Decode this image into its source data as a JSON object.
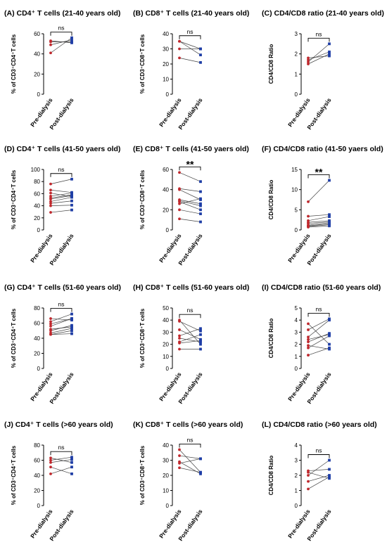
{
  "figure": {
    "categories": [
      "Pre-dialysis",
      "Post-dialysis"
    ],
    "pre_color": "#c0282d",
    "post_color": "#1f3ea6"
  },
  "chart_data": [
    {
      "id": "A",
      "type": "scatter",
      "panel": "(A)",
      "title": "CD4⁺ T cells (21-40 years old)",
      "ylabel": "% of CD3⁺CD4⁺T cells",
      "ylim": [
        0,
        60
      ],
      "yticks": [
        0,
        20,
        40,
        60
      ],
      "sig": "ns",
      "pairs": [
        [
          41,
          56
        ],
        [
          49,
          54
        ],
        [
          52,
          52
        ],
        [
          53,
          51
        ]
      ]
    },
    {
      "id": "B",
      "type": "scatter",
      "panel": "(B)",
      "title": "CD8⁺ T cells (21-40 years old)",
      "ylabel": "% of CD3⁺CD8⁺T cells",
      "ylim": [
        0,
        40
      ],
      "yticks": [
        0,
        10,
        20,
        30,
        40
      ],
      "sig": "ns",
      "pairs": [
        [
          35,
          26
        ],
        [
          35,
          30
        ],
        [
          30,
          30
        ],
        [
          24,
          21
        ]
      ]
    },
    {
      "id": "C",
      "type": "scatter",
      "panel": "(C)",
      "title": "CD4/CD8 ratio (21-40 years old)",
      "ylabel": "CD4/CD8 Ratio",
      "ylim": [
        0,
        3
      ],
      "yticks": [
        0,
        1,
        2,
        3
      ],
      "sig": "ns",
      "pairs": [
        [
          1.5,
          2.0
        ],
        [
          1.6,
          2.5
        ],
        [
          1.7,
          2.1
        ],
        [
          1.8,
          1.9
        ]
      ]
    },
    {
      "id": "D",
      "type": "scatter",
      "panel": "(D)",
      "title": "CD4⁺ T cells (41-50 yaers old)",
      "ylabel": "% of CD3⁺CD4⁺T cells",
      "ylim": [
        0,
        100
      ],
      "yticks": [
        0,
        20,
        40,
        60,
        80,
        100
      ],
      "sig": "ns",
      "pairs": [
        [
          76,
          84
        ],
        [
          66,
          62
        ],
        [
          61,
          55
        ],
        [
          56,
          61
        ],
        [
          53,
          58
        ],
        [
          51,
          57
        ],
        [
          47,
          54
        ],
        [
          44,
          48
        ],
        [
          40,
          41
        ],
        [
          29,
          33
        ]
      ]
    },
    {
      "id": "E",
      "type": "scatter",
      "panel": "(E)",
      "title": "CD8⁺ T cells (41-50 yaers old)",
      "ylabel": "% of CD3⁺CD8⁺T cells",
      "ylim": [
        0,
        60
      ],
      "yticks": [
        0,
        20,
        40,
        60
      ],
      "sig": "**",
      "pairs": [
        [
          57,
          48
        ],
        [
          41,
          38
        ],
        [
          40,
          30
        ],
        [
          30,
          26
        ],
        [
          29,
          24
        ],
        [
          28,
          20
        ],
        [
          26,
          31
        ],
        [
          20,
          16
        ],
        [
          11,
          8
        ]
      ]
    },
    {
      "id": "F",
      "type": "scatter",
      "panel": "(F)",
      "title": "CD4/CD8 ratio (41-50 yaers old)",
      "ylabel": "CD4/CD8 Ratio",
      "ylim": [
        0,
        15
      ],
      "yticks": [
        0,
        5,
        10,
        15
      ],
      "sig": "**",
      "pairs": [
        [
          7.0,
          12.3
        ],
        [
          3.4,
          3.8
        ],
        [
          2.3,
          3.3
        ],
        [
          1.9,
          2.3
        ],
        [
          1.6,
          2.0
        ],
        [
          1.2,
          1.8
        ],
        [
          1.0,
          1.5
        ],
        [
          0.9,
          1.3
        ],
        [
          0.7,
          1.0
        ]
      ]
    },
    {
      "id": "G",
      "type": "scatter",
      "panel": "(G)",
      "title": "CD4⁺ T cells (51-60 years old)",
      "ylabel": "% of CD3⁺CD4⁺T cells",
      "ylim": [
        0,
        80
      ],
      "yticks": [
        0,
        20,
        40,
        60,
        80
      ],
      "sig": "ns",
      "pairs": [
        [
          66,
          64
        ],
        [
          62,
          72
        ],
        [
          59,
          66
        ],
        [
          56,
          66
        ],
        [
          52,
          55
        ],
        [
          50,
          57
        ],
        [
          47,
          53
        ],
        [
          45,
          50
        ],
        [
          45,
          46
        ]
      ]
    },
    {
      "id": "H",
      "type": "scatter",
      "panel": "(H)",
      "title": "CD8⁺ T cells (51-60 years old)",
      "ylabel": "% of CD3⁺CD8⁺T cells",
      "ylim": [
        0,
        50
      ],
      "yticks": [
        0,
        10,
        20,
        30,
        40,
        50
      ],
      "sig": "ns",
      "pairs": [
        [
          40,
          20
        ],
        [
          39,
          31
        ],
        [
          32,
          24
        ],
        [
          27,
          33
        ],
        [
          25,
          22
        ],
        [
          22,
          28
        ],
        [
          21,
          23
        ],
        [
          16,
          16
        ]
      ]
    },
    {
      "id": "I",
      "type": "scatter",
      "panel": "(I)",
      "title": "CD4/CD8 ratio (51-60 years old)",
      "ylabel": "CD4/CD8 Ratio",
      "ylim": [
        0,
        5
      ],
      "yticks": [
        0,
        1,
        2,
        3,
        4,
        5
      ],
      "sig": "ns",
      "pairs": [
        [
          3.7,
          2.0
        ],
        [
          3.2,
          4.1
        ],
        [
          2.6,
          4.0
        ],
        [
          2.4,
          2.8
        ],
        [
          2.2,
          2.9
        ],
        [
          1.9,
          1.6
        ],
        [
          1.7,
          2.7
        ],
        [
          1.1,
          1.7
        ]
      ]
    },
    {
      "id": "J",
      "type": "scatter",
      "panel": "(J)",
      "title": "CD4⁺ T cells (>60 years old)",
      "ylabel": "% of CD3⁺CD4⁺T cells",
      "ylim": [
        0,
        80
      ],
      "yticks": [
        0,
        20,
        40,
        60,
        80
      ],
      "sig": "ns",
      "pairs": [
        [
          63,
          57
        ],
        [
          60,
          64
        ],
        [
          57,
          61
        ],
        [
          51,
          42
        ],
        [
          42,
          51
        ]
      ]
    },
    {
      "id": "K",
      "type": "scatter",
      "panel": "(K)",
      "title": "CD8⁺ T cells (>60 years old)",
      "ylabel": "% of CD3⁺CD8⁺T cells",
      "ylim": [
        0,
        40
      ],
      "yticks": [
        0,
        10,
        20,
        30,
        40
      ],
      "sig": "ns",
      "pairs": [
        [
          37,
          22
        ],
        [
          33,
          31
        ],
        [
          29,
          21
        ],
        [
          28,
          31
        ],
        [
          25,
          22
        ]
      ]
    },
    {
      "id": "L",
      "type": "scatter",
      "panel": "(L)",
      "title": "CD4/CD8 ratio (>60 years old)",
      "ylabel": "CD4/CD8 Ratio",
      "ylim": [
        0,
        4
      ],
      "yticks": [
        0,
        1,
        2,
        3,
        4
      ],
      "sig": "ns",
      "pairs": [
        [
          2.3,
          2.4
        ],
        [
          2.2,
          1.8
        ],
        [
          2.0,
          3.0
        ],
        [
          1.6,
          2.0
        ],
        [
          1.1,
          1.9
        ]
      ]
    }
  ]
}
